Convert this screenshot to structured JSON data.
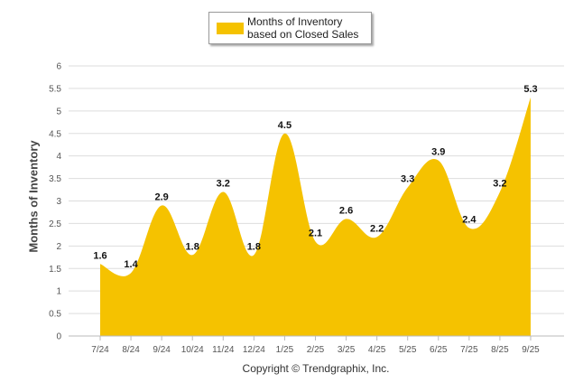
{
  "legend": {
    "label": "Months of Inventory based on Closed Sales"
  },
  "footer": {
    "copyright": "Copyright © Trendgraphix, Inc."
  },
  "colors": {
    "area": "#F5C200",
    "grid": "#DDDDDD",
    "axis": "#BBBBBB"
  },
  "chart_data": {
    "type": "area",
    "title": "",
    "xlabel": "",
    "ylabel": "Months of Inventory",
    "ylim": [
      0,
      6
    ],
    "yticks": [
      "0",
      "0.5",
      "1",
      "1.5",
      "2",
      "2.5",
      "3",
      "3.5",
      "4",
      "4.5",
      "5",
      "5.5",
      "6"
    ],
    "grid": true,
    "legend_position": "top-center",
    "categories": [
      "7/24",
      "8/24",
      "9/24",
      "10/24",
      "11/24",
      "12/24",
      "1/25",
      "2/25",
      "3/25",
      "4/25",
      "5/25",
      "6/25",
      "7/25",
      "8/25",
      "9/25"
    ],
    "series": [
      {
        "name": "Months of Inventory based on Closed Sales",
        "values": [
          1.6,
          1.4,
          2.9,
          1.8,
          3.2,
          1.8,
          4.5,
          2.1,
          2.6,
          2.2,
          3.3,
          3.9,
          2.4,
          3.2,
          5.3
        ],
        "data_labels": [
          "1.6",
          "1.4",
          "2.9",
          "1.8",
          "3.2",
          "1.8",
          "4.5",
          "2.1",
          "2.6",
          "2.2",
          "3.3",
          "3.9",
          "2.4",
          "3.2",
          "5.3"
        ]
      }
    ]
  }
}
